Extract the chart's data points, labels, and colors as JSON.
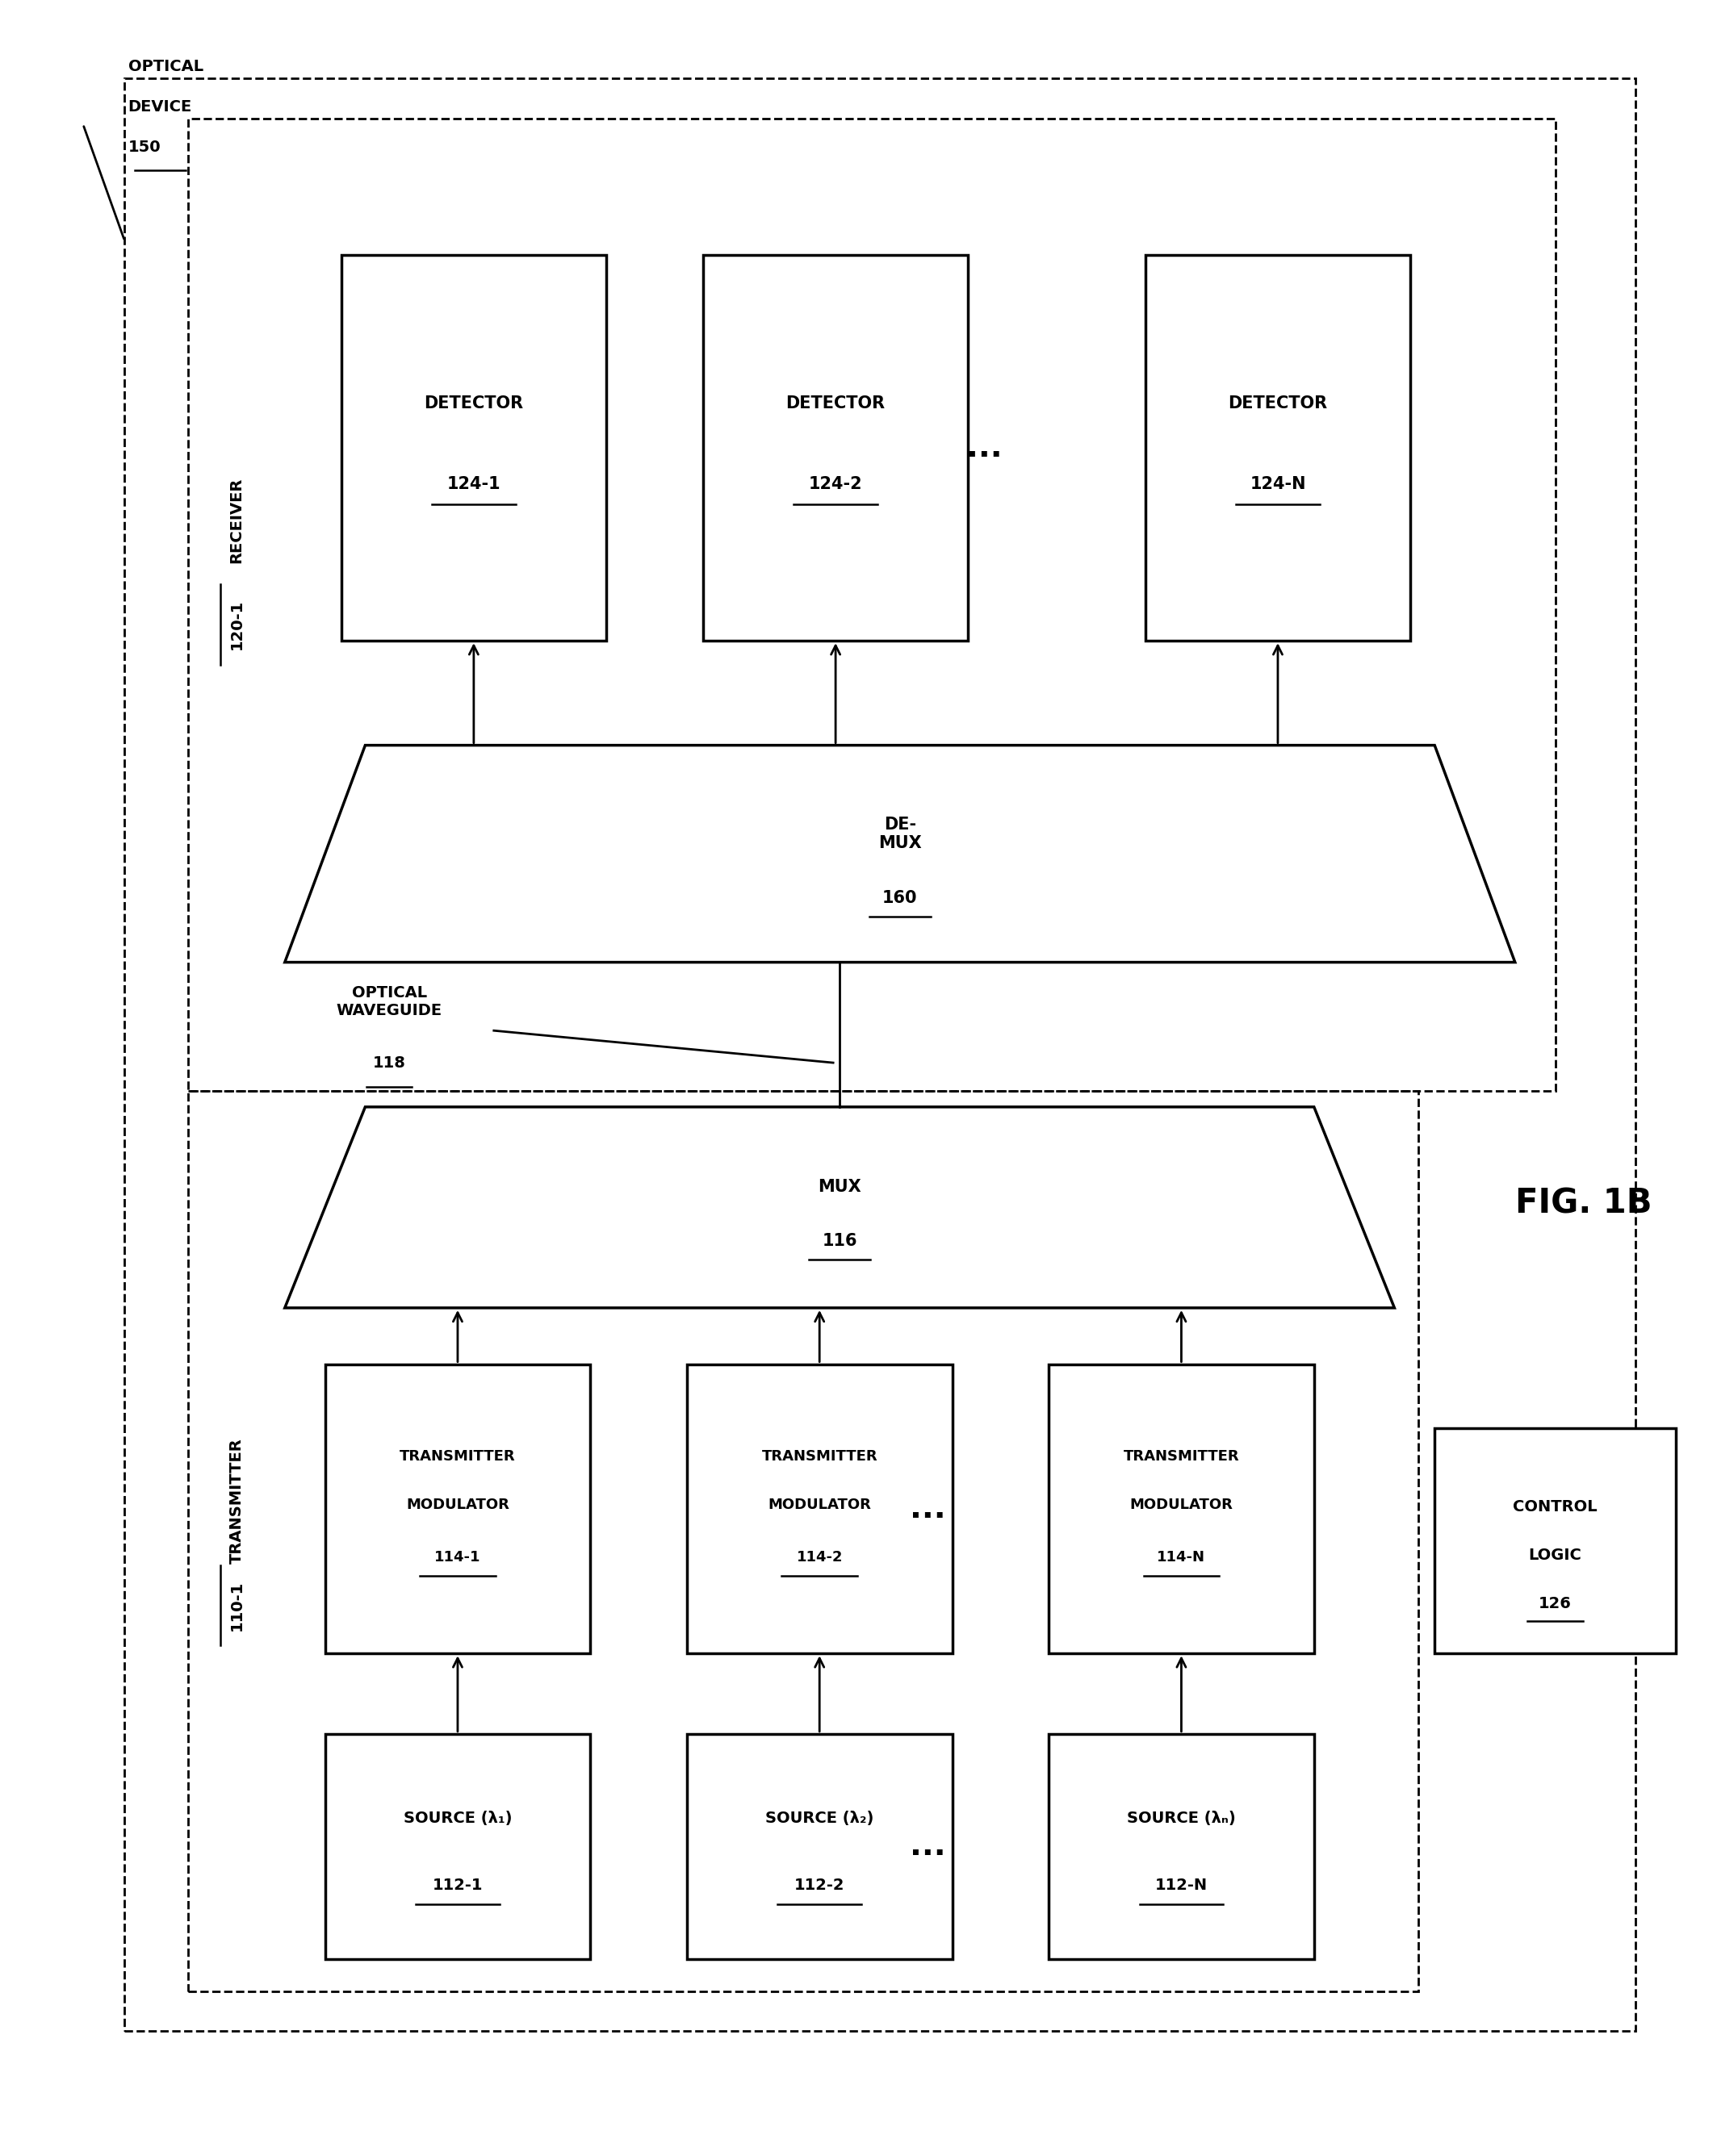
{
  "fig_width": 21.27,
  "fig_height": 26.72,
  "bg_color": "#ffffff",
  "title": "FIG. 1B",
  "detectors": [
    [
      "DETECTOR",
      "124-1"
    ],
    [
      "DETECTOR",
      "124-2"
    ],
    [
      "DETECTOR",
      "124-N"
    ]
  ],
  "sources": [
    [
      "SOURCE (λ₁)",
      "112-1"
    ],
    [
      "SOURCE (λ₂)",
      "112-2"
    ],
    [
      "SOURCE (λₙ)",
      "112-N"
    ]
  ],
  "tx_modulators": [
    [
      "TRANSMITTER",
      "MODULATOR",
      "114-1"
    ],
    [
      "TRANSMITTER",
      "MODULATOR",
      "114-2"
    ],
    [
      "TRANSMITTER",
      "MODULATOR",
      "114-N"
    ]
  ],
  "demux": [
    "DE-",
    "MUX",
    "160"
  ],
  "mux": [
    "MUX",
    "116"
  ],
  "control_logic": [
    "CONTROL",
    "LOGIC",
    "126"
  ],
  "optical_device": [
    "OPTICAL",
    "DEVICE",
    "150"
  ],
  "optical_waveguide": [
    "OPTICAL",
    "WAVEGUIDE",
    "118"
  ],
  "receiver": [
    "RECEIVER",
    "120-1"
  ],
  "transmitter": [
    "TRANSMITTER",
    "110-1"
  ],
  "lw_thick": 2.5,
  "lw_thin": 2.0,
  "lw_dash": 2.0,
  "fs_main": 15,
  "fs_label": 14,
  "fs_title": 30
}
